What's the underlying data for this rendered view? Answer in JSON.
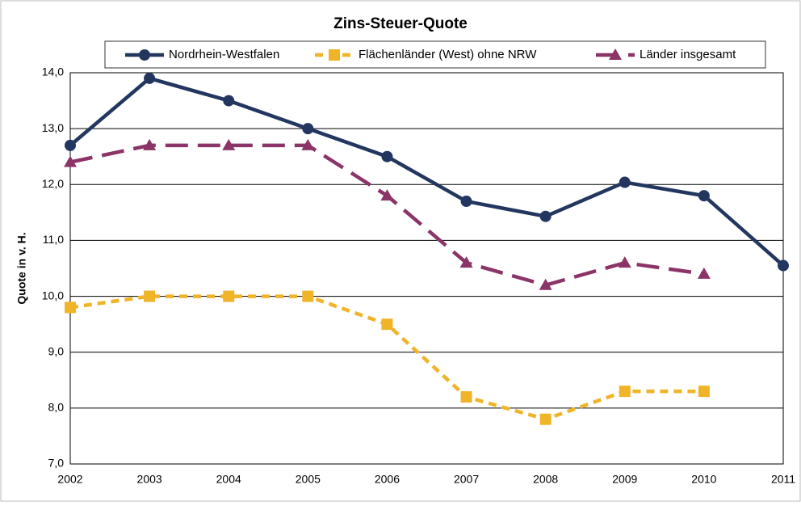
{
  "chart_data": {
    "type": "line",
    "title": "Zins-Steuer-Quote",
    "ylabel": "Quote in v. H.",
    "categories": [
      "2002",
      "2003",
      "2004",
      "2005",
      "2006",
      "2007",
      "2008",
      "2009",
      "2010",
      "2011"
    ],
    "series": [
      {
        "name": "Nordrhein-Westfalen",
        "color": "#22365f",
        "marker": "circle",
        "dash": "solid",
        "values": [
          12.7,
          13.9,
          13.5,
          13.0,
          12.5,
          11.7,
          11.43,
          12.04,
          11.8,
          10.55
        ]
      },
      {
        "name": "Flächenländer (West) ohne NRW",
        "color": "#f0b429",
        "marker": "square",
        "dash": "short",
        "values": [
          9.8,
          10.0,
          10.0,
          10.0,
          9.5,
          8.2,
          7.8,
          8.3,
          8.3,
          null
        ]
      },
      {
        "name": "Länder insgesamt",
        "color": "#8b3468",
        "marker": "triangle",
        "dash": "long",
        "values": [
          12.4,
          12.7,
          12.7,
          12.7,
          11.8,
          10.6,
          10.2,
          10.6,
          10.4,
          null
        ]
      }
    ],
    "ylim": [
      7,
      14
    ],
    "yticks": [
      {
        "value": 7,
        "label": "7,0"
      },
      {
        "value": 8,
        "label": "8,0"
      },
      {
        "value": 9,
        "label": "9,0"
      },
      {
        "value": 10,
        "label": "10,0"
      },
      {
        "value": 11,
        "label": "11,0"
      },
      {
        "value": 12,
        "label": "12,0"
      },
      {
        "value": 13,
        "label": "13,0"
      },
      {
        "value": 14,
        "label": "14,0"
      }
    ],
    "grid": true,
    "legend": "top"
  }
}
